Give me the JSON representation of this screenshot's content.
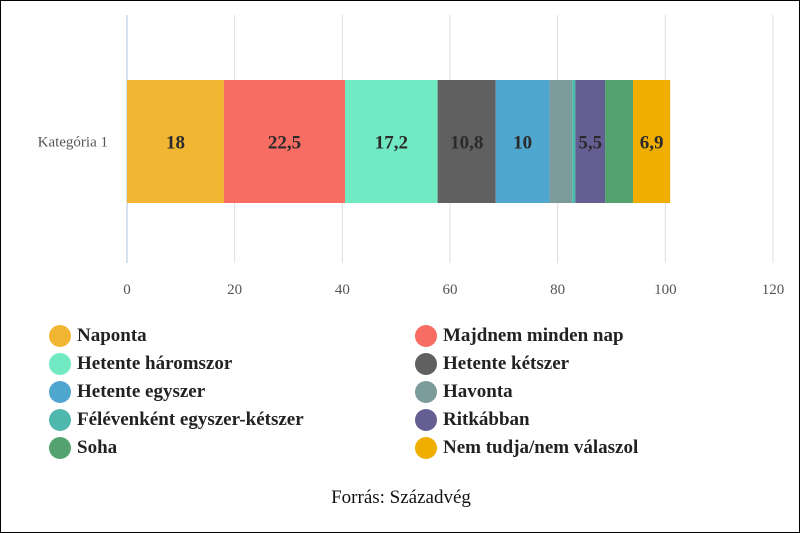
{
  "chart_data": {
    "type": "bar",
    "orientation": "horizontal",
    "stacked": true,
    "categories": [
      "Kategória 1"
    ],
    "series": [
      {
        "name": "Naponta",
        "values": [
          18
        ],
        "color": "#F2B632",
        "label": "18"
      },
      {
        "name": "Majdnem minden nap",
        "values": [
          22.5
        ],
        "color": "#F76D63",
        "label": "22,5"
      },
      {
        "name": "Hetente háromszor",
        "values": [
          17.2
        ],
        "color": "#71EAC4",
        "label": "17,2"
      },
      {
        "name": "Hetente kétszer",
        "values": [
          10.8
        ],
        "color": "#606060",
        "label": "10,8"
      },
      {
        "name": "Hetente egyszer",
        "values": [
          10
        ],
        "color": "#4FA6CE",
        "label": "10"
      },
      {
        "name": "Havonta",
        "values": [
          4.2
        ],
        "color": "#7B9C9B",
        "label": ""
      },
      {
        "name": "Félévenként egyszer-kétszer",
        "values": [
          0.6
        ],
        "color": "#4EB8AD",
        "label": ""
      },
      {
        "name": "Ritkábban",
        "values": [
          5.5
        ],
        "color": "#645E93",
        "label": "5,5"
      },
      {
        "name": "Soha",
        "values": [
          5.2
        ],
        "color": "#55A271",
        "label": ""
      },
      {
        "name": "Nem tudja/nem válaszol",
        "values": [
          6.9
        ],
        "color": "#F0AF00",
        "label": "6,9"
      }
    ],
    "xlim": [
      0,
      120
    ],
    "xticks": [
      "0",
      "20",
      "40",
      "60",
      "80",
      "100",
      "120"
    ],
    "grid": true,
    "legend_position": "bottom"
  },
  "source": "Forrás: Századvég"
}
